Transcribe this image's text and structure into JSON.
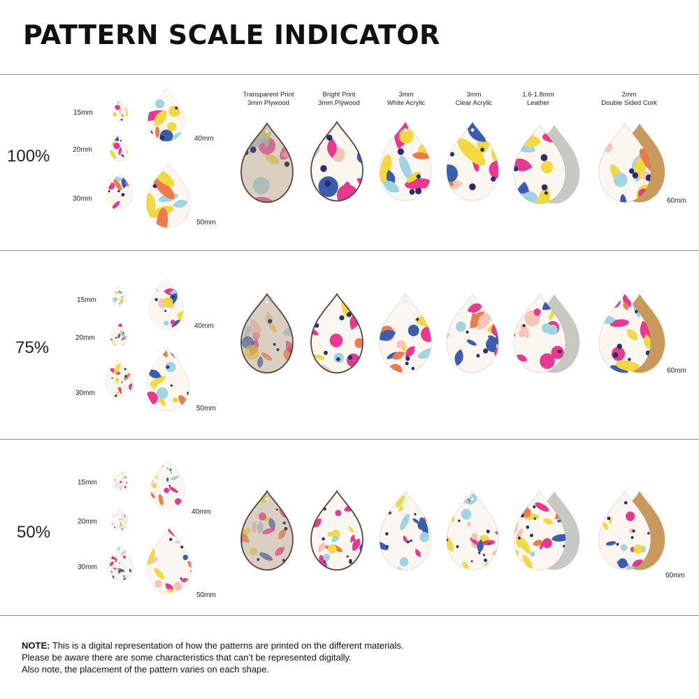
{
  "title": "PATTERN SCALE INDICATOR",
  "materials": [
    {
      "line1": "Transparent Print",
      "line2": "3mm Plywood"
    },
    {
      "line1": "Bright Print",
      "line2": "3mm Plywood"
    },
    {
      "line1": "3mm",
      "line2": "White Acrylic"
    },
    {
      "line1": "3mm",
      "line2": "Clear Acrylic"
    },
    {
      "line1": "1.6-1.8mm",
      "line2": "Leather"
    },
    {
      "line1": "2mm",
      "line2": "Double Sided Cork"
    }
  ],
  "rows": [
    {
      "scale": "100%",
      "sizes": [
        "15mm",
        "20mm",
        "30mm",
        "40mm",
        "50mm"
      ],
      "large_size": "60mm"
    },
    {
      "scale": "75%",
      "sizes": [
        "15mm",
        "20mm",
        "30mm",
        "40mm",
        "50mm"
      ],
      "large_size": "60mm"
    },
    {
      "scale": "50%",
      "sizes": [
        "15mm",
        "20mm",
        "30mm",
        "40mm",
        "50mm"
      ],
      "large_size": "60mm"
    }
  ],
  "note": {
    "label": "NOTE:",
    "line1": " This is a digital representation of how the patterns are printed on the different materials.",
    "line2": "Please be aware there are some characteristics that can’t be represented digitally.",
    "line3": "Also note, the placement of the pattern varies on each shape."
  },
  "colors": {
    "pink": "#e8388f",
    "yellow": "#f1d93f",
    "orange": "#f07a4a",
    "blue": "#3a5db0",
    "lightblue": "#9fd4e0",
    "peach": "#f7c5b5",
    "navy": "#2a2f6e",
    "leather": "#c9c9c4",
    "cork": "#c99a5c",
    "wood": "#8a6a4e"
  }
}
